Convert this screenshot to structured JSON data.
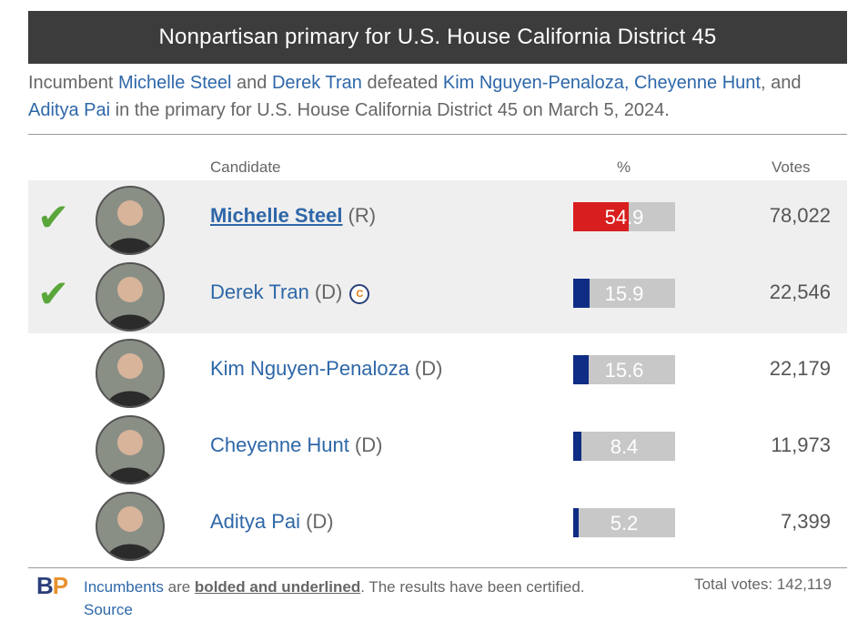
{
  "header": {
    "title": "Nonpartisan primary for U.S. House California District 45"
  },
  "summary": {
    "t1": "Incumbent ",
    "l1": "Michelle Steel",
    "t2": " and ",
    "l2": "Derek Tran",
    "t3": " defeated ",
    "l3": "Kim Nguyen-Penaloza",
    "t4": ", ",
    "l4": "Cheyenne Hunt",
    "t5": ", and ",
    "l5": "Aditya Pai",
    "t6": " in the primary for U.S. House California District 45 on March 5, 2024."
  },
  "columns": {
    "candidate": "Candidate",
    "percent": "%",
    "votes": "Votes"
  },
  "colors": {
    "republican": "#d81e1e",
    "democrat": "#0f2d84",
    "winner_check": "#5aa63b",
    "link": "#2e67a8"
  },
  "candidates": [
    {
      "name": "Michelle Steel",
      "party": "(R)",
      "percent": "54.9",
      "percent_value": 54.9,
      "votes": "78,022",
      "winner": true,
      "incumbent": true,
      "party_color": "#d81e1e",
      "shaded": true,
      "badge": ""
    },
    {
      "name": "Derek Tran",
      "party": "(D)",
      "percent": "15.9",
      "percent_value": 15.9,
      "votes": "22,546",
      "winner": true,
      "incumbent": false,
      "party_color": "#0f2d84",
      "shaded": true,
      "badge": "C"
    },
    {
      "name": "Kim Nguyen-Penaloza",
      "party": "(D)",
      "percent": "15.6",
      "percent_value": 15.6,
      "votes": "22,179",
      "winner": false,
      "incumbent": false,
      "party_color": "#0f2d84",
      "shaded": false,
      "badge": ""
    },
    {
      "name": "Cheyenne Hunt",
      "party": "(D)",
      "percent": "8.4",
      "percent_value": 8.4,
      "votes": "11,973",
      "winner": false,
      "incumbent": false,
      "party_color": "#0f2d84",
      "shaded": false,
      "badge": ""
    },
    {
      "name": "Aditya Pai",
      "party": "(D)",
      "percent": "5.2",
      "percent_value": 5.2,
      "votes": "7,399",
      "winner": false,
      "incumbent": false,
      "party_color": "#0f2d84",
      "shaded": false,
      "badge": ""
    }
  ],
  "footer": {
    "logo_b": "B",
    "logo_p": "P",
    "incumbents_link": "Incumbents",
    "are": " are ",
    "bolded": "bolded and underlined",
    "certified": ". The results have been certified. ",
    "source_link": "Source",
    "total_votes": "Total votes: 142,119"
  },
  "icons": {
    "check": "checkmark-icon"
  }
}
